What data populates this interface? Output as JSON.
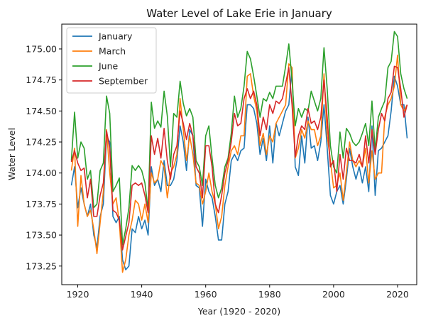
{
  "chart_data": {
    "type": "line",
    "title": "Water Level of Lake Erie in January",
    "xlabel": "Year (1920 - 2020)",
    "ylabel": "Water Level",
    "xlim": [
      1915,
      2026
    ],
    "ylim": [
      173.1,
      175.2
    ],
    "xticks": [
      1920,
      1940,
      1960,
      1980,
      2000,
      2020
    ],
    "yticks": [
      173.25,
      173.5,
      173.75,
      174.0,
      174.25,
      174.5,
      174.75,
      175.0
    ],
    "ytick_labels": [
      "173.25",
      "173.50",
      "173.75",
      "174.00",
      "174.25",
      "174.50",
      "174.75",
      "175.00"
    ],
    "legend_position": "top-left",
    "grid": false,
    "x": [
      1918,
      1919,
      1920,
      1921,
      1922,
      1923,
      1924,
      1925,
      1926,
      1927,
      1928,
      1929,
      1930,
      1931,
      1932,
      1933,
      1934,
      1935,
      1936,
      1937,
      1938,
      1939,
      1940,
      1941,
      1942,
      1943,
      1944,
      1945,
      1946,
      1947,
      1948,
      1949,
      1950,
      1951,
      1952,
      1953,
      1954,
      1955,
      1956,
      1957,
      1958,
      1959,
      1960,
      1961,
      1962,
      1963,
      1964,
      1965,
      1966,
      1967,
      1968,
      1969,
      1970,
      1971,
      1972,
      1973,
      1974,
      1975,
      1976,
      1977,
      1978,
      1979,
      1980,
      1981,
      1982,
      1983,
      1984,
      1985,
      1986,
      1987,
      1988,
      1989,
      1990,
      1991,
      1992,
      1993,
      1994,
      1995,
      1996,
      1997,
      1998,
      1999,
      2000,
      2001,
      2002,
      2003,
      2004,
      2005,
      2006,
      2007,
      2008,
      2009,
      2010,
      2011,
      2012,
      2013,
      2014,
      2015,
      2016,
      2017,
      2018,
      2019,
      2020,
      2021,
      2022,
      2023
    ],
    "series": [
      {
        "name": "January",
        "color": "#1f77b4",
        "values": [
          173.9,
          174.05,
          173.72,
          173.88,
          173.75,
          173.65,
          173.75,
          173.5,
          173.4,
          173.65,
          173.75,
          174.3,
          174.25,
          173.65,
          173.6,
          173.65,
          173.3,
          173.22,
          173.25,
          173.55,
          173.52,
          173.65,
          173.55,
          173.62,
          173.5,
          174.05,
          173.9,
          173.95,
          173.85,
          174.1,
          173.9,
          173.9,
          173.95,
          174.1,
          174.38,
          174.25,
          174.02,
          174.35,
          174.3,
          173.9,
          173.88,
          173.57,
          173.95,
          173.85,
          173.8,
          173.65,
          173.46,
          173.46,
          173.75,
          173.85,
          174.1,
          174.15,
          174.1,
          174.18,
          174.2,
          174.55,
          174.55,
          174.52,
          174.4,
          174.15,
          174.28,
          174.1,
          174.38,
          174.08,
          174.4,
          174.3,
          174.4,
          174.5,
          174.55,
          174.85,
          174.05,
          173.98,
          174.3,
          174.08,
          174.45,
          174.2,
          174.22,
          174.1,
          174.25,
          174.55,
          174.2,
          173.82,
          173.75,
          173.85,
          173.9,
          173.75,
          173.95,
          174.2,
          174.05,
          173.95,
          174.05,
          173.92,
          174.05,
          173.85,
          174.38,
          173.82,
          174.18,
          174.2,
          174.25,
          174.3,
          174.5,
          174.78,
          174.7,
          174.55,
          174.55,
          174.28
        ]
      },
      {
        "name": "March",
        "color": "#ff7f0e",
        "values": [
          174.02,
          174.2,
          173.57,
          173.98,
          173.75,
          173.65,
          173.7,
          173.55,
          173.35,
          173.6,
          173.85,
          174.35,
          174.0,
          173.75,
          173.8,
          173.6,
          173.2,
          173.3,
          173.5,
          173.62,
          173.78,
          173.75,
          173.62,
          173.75,
          173.6,
          174.0,
          173.92,
          173.95,
          174.1,
          174.05,
          173.8,
          174.0,
          174.05,
          174.15,
          174.6,
          174.35,
          174.1,
          174.3,
          174.15,
          173.92,
          173.9,
          173.75,
          173.85,
          174.0,
          173.85,
          173.75,
          173.55,
          173.65,
          173.9,
          174.05,
          174.18,
          174.22,
          174.15,
          174.3,
          174.3,
          174.78,
          174.8,
          174.62,
          174.5,
          174.22,
          174.32,
          174.15,
          174.3,
          174.25,
          174.4,
          174.45,
          174.5,
          174.55,
          174.88,
          174.85,
          174.12,
          174.2,
          174.35,
          174.28,
          174.42,
          174.35,
          174.35,
          174.22,
          174.3,
          174.8,
          174.3,
          174.1,
          173.88,
          173.9,
          174.0,
          173.78,
          174.0,
          174.25,
          174.1,
          174.05,
          174.1,
          174.05,
          174.2,
          173.92,
          174.18,
          173.95,
          174.0,
          174.0,
          174.45,
          174.55,
          174.6,
          174.7,
          174.95,
          174.55,
          174.5,
          174.55
        ]
      },
      {
        "name": "June",
        "color": "#2ca02c",
        "values": [
          174.1,
          174.49,
          174.12,
          174.25,
          174.2,
          173.95,
          174.02,
          173.72,
          173.75,
          174.02,
          174.08,
          174.62,
          174.48,
          173.85,
          173.9,
          173.96,
          173.42,
          173.55,
          173.72,
          174.06,
          174.02,
          174.06,
          174.02,
          173.92,
          173.7,
          174.57,
          174.36,
          174.42,
          174.37,
          174.66,
          174.46,
          174.05,
          174.48,
          174.45,
          174.74,
          174.56,
          174.46,
          174.52,
          174.45,
          174.1,
          174.05,
          173.9,
          174.3,
          174.38,
          174.12,
          173.9,
          173.8,
          173.88,
          174.05,
          174.12,
          174.32,
          174.62,
          174.45,
          174.52,
          174.7,
          174.98,
          174.92,
          174.78,
          174.62,
          174.45,
          174.6,
          174.58,
          174.65,
          174.6,
          174.7,
          174.7,
          174.7,
          174.86,
          175.04,
          174.75,
          174.38,
          174.52,
          174.45,
          174.52,
          174.5,
          174.66,
          174.58,
          174.5,
          174.6,
          175.01,
          174.68,
          174.22,
          174.05,
          174.0,
          174.33,
          174.12,
          174.36,
          174.32,
          174.25,
          174.22,
          174.25,
          174.32,
          174.4,
          174.22,
          174.58,
          174.18,
          174.45,
          174.52,
          174.58,
          174.85,
          174.9,
          175.14,
          175.1,
          174.8,
          174.68,
          174.6
        ]
      },
      {
        "name": "September",
        "color": "#d62728",
        "values": [
          174.09,
          174.18,
          174.08,
          174.02,
          174.04,
          173.8,
          173.95,
          173.65,
          173.65,
          173.82,
          173.92,
          174.34,
          174.2,
          173.7,
          173.68,
          173.62,
          173.38,
          173.49,
          173.6,
          173.9,
          173.92,
          173.9,
          173.92,
          173.82,
          173.68,
          174.3,
          174.15,
          174.28,
          174.12,
          174.36,
          174.1,
          173.95,
          174.15,
          174.22,
          174.5,
          174.4,
          174.27,
          174.4,
          174.3,
          174.05,
          174.0,
          173.8,
          174.22,
          174.22,
          174.05,
          173.75,
          173.68,
          173.82,
          174.0,
          174.1,
          174.25,
          174.48,
          174.38,
          174.4,
          174.6,
          174.68,
          174.6,
          174.66,
          174.55,
          174.3,
          174.45,
          174.35,
          174.55,
          174.48,
          174.58,
          174.56,
          174.6,
          174.72,
          174.85,
          174.55,
          174.13,
          174.3,
          174.38,
          174.35,
          174.52,
          174.4,
          174.42,
          174.35,
          174.45,
          174.75,
          174.45,
          174.05,
          174.1,
          173.85,
          174.15,
          173.95,
          174.2,
          174.1,
          174.1,
          174.08,
          174.15,
          174.05,
          174.3,
          174.08,
          174.35,
          174.15,
          174.35,
          174.48,
          174.42,
          174.6,
          174.65,
          174.86,
          174.85,
          174.68,
          174.45,
          174.55
        ]
      }
    ]
  }
}
